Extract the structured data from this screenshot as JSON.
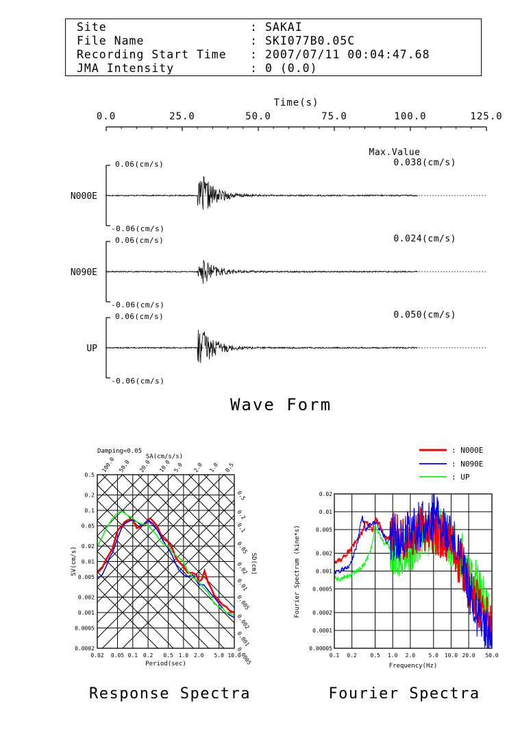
{
  "header": {
    "rows": [
      {
        "label": "Site",
        "value": "SAKAI"
      },
      {
        "label": "File Name",
        "value": "SKI077B0.05C"
      },
      {
        "label": "Recording Start Time",
        "value": "2007/07/11 00:04:47.68"
      },
      {
        "label": "JMA Intensity",
        "value": "0 (0.0)"
      }
    ],
    "colon": ":"
  },
  "chart_data": [
    {
      "type": "line",
      "title": "Wave Form",
      "xlabel": "Time(s)",
      "xlim": [
        0,
        125
      ],
      "x_ticks": [
        "0.0",
        "25.0",
        "50.0",
        "75.0",
        "100.0",
        "125.0"
      ],
      "max_value_label": "Max.Value",
      "series": [
        {
          "name": "N000E",
          "max_value": "0.038(cm/s)",
          "ylim_top": "0.06(cm/s)",
          "ylim_bottom": "-0.06(cm/s)",
          "onset_s": 30,
          "peak_s": 32,
          "max_abs": 0.038
        },
        {
          "name": "N090E",
          "max_value": "0.024(cm/s)",
          "ylim_top": "0.06(cm/s)",
          "ylim_bottom": "-0.06(cm/s)",
          "onset_s": 30,
          "peak_s": 32,
          "max_abs": 0.024
        },
        {
          "name": "UP",
          "max_value": "0.050(cm/s)",
          "ylim_top": "0.06(cm/s)",
          "ylim_bottom": "-0.06(cm/s)",
          "onset_s": 30,
          "peak_s": 30.5,
          "max_abs": 0.05
        }
      ]
    },
    {
      "type": "line",
      "title": "Response Spectra",
      "damping": "Damping=0.05",
      "xlabel": "Period(sec)",
      "ylabel": "SV(cm/s)",
      "top_label": "SA(cm/s/s)",
      "right_label": "SD(cm)",
      "x_scale": "log",
      "y_scale": "log",
      "xlim": [
        0.02,
        10.0
      ],
      "ylim": [
        0.0002,
        0.5
      ],
      "x_ticks": [
        "0.02",
        "0.05",
        "0.1",
        "0.2",
        "0.5",
        "1.0",
        "2.0",
        "5.0",
        "10.0"
      ],
      "y_ticks": [
        "0.5",
        "0.2",
        "0.1",
        "0.05",
        "0.02",
        "0.01",
        "0.005",
        "0.002",
        "0.001",
        "0.0005",
        "0.0002"
      ],
      "sa_ticks": [
        "100.0",
        "50.0",
        "20.0",
        "10.0",
        "5.0",
        "2.0",
        "1.0",
        "0.5"
      ],
      "sd_ticks": [
        "0.5",
        "0.2",
        "0.1",
        "0.05",
        "0.02",
        "0.01",
        "0.005",
        "0.002",
        "0.001",
        "0.0005"
      ],
      "series": [
        {
          "name": "N000E",
          "color": "#ff0000",
          "x": [
            0.02,
            0.025,
            0.03,
            0.04,
            0.05,
            0.06,
            0.07,
            0.08,
            0.1,
            0.12,
            0.15,
            0.18,
            0.2,
            0.22,
            0.25,
            0.3,
            0.35,
            0.4,
            0.5,
            0.6,
            0.7,
            0.8,
            1.0,
            1.2,
            1.5,
            1.8,
            2.0,
            2.3,
            2.6,
            3.0,
            3.5,
            4.0,
            5.0,
            6.0,
            7.0,
            8.0,
            10.0
          ],
          "y": [
            0.006,
            0.0075,
            0.011,
            0.018,
            0.04,
            0.05,
            0.06,
            0.065,
            0.065,
            0.045,
            0.05,
            0.055,
            0.065,
            0.07,
            0.062,
            0.05,
            0.035,
            0.028,
            0.024,
            0.018,
            0.012,
            0.01,
            0.008,
            0.006,
            0.006,
            0.0055,
            0.004,
            0.0045,
            0.0065,
            0.004,
            0.003,
            0.0022,
            0.0017,
            0.0014,
            0.0013,
            0.0011,
            0.001
          ]
        },
        {
          "name": "N090E",
          "color": "#0000ff",
          "x": [
            0.02,
            0.025,
            0.03,
            0.035,
            0.04,
            0.05,
            0.06,
            0.07,
            0.08,
            0.1,
            0.12,
            0.15,
            0.2,
            0.25,
            0.3,
            0.35,
            0.4,
            0.5,
            0.6,
            0.7,
            0.8,
            1.0,
            1.2,
            1.5,
            1.8,
            2.0,
            2.5,
            3.0,
            3.5,
            4.0,
            5.0,
            6.0,
            7.0,
            8.0,
            10.0
          ],
          "y": [
            0.0045,
            0.0055,
            0.008,
            0.012,
            0.015,
            0.028,
            0.045,
            0.055,
            0.06,
            0.065,
            0.06,
            0.05,
            0.065,
            0.055,
            0.042,
            0.032,
            0.025,
            0.018,
            0.013,
            0.009,
            0.007,
            0.0055,
            0.005,
            0.0055,
            0.0042,
            0.0035,
            0.0035,
            0.0028,
            0.0023,
            0.002,
            0.0015,
            0.0012,
            0.001,
            0.0009,
            0.0008
          ]
        },
        {
          "name": "UP",
          "color": "#00ff00",
          "x": [
            0.02,
            0.025,
            0.03,
            0.04,
            0.05,
            0.06,
            0.07,
            0.08,
            0.1,
            0.12,
            0.15,
            0.2,
            0.25,
            0.3,
            0.35,
            0.4,
            0.5,
            0.6,
            0.8,
            1.0,
            1.2,
            1.5,
            2.0,
            2.5,
            3.0,
            4.0,
            5.0,
            6.0,
            7.0,
            8.0,
            10.0
          ],
          "y": [
            0.02,
            0.03,
            0.045,
            0.07,
            0.09,
            0.095,
            0.088,
            0.08,
            0.07,
            0.06,
            0.055,
            0.05,
            0.04,
            0.032,
            0.025,
            0.022,
            0.02,
            0.015,
            0.012,
            0.01,
            0.0065,
            0.005,
            0.004,
            0.003,
            0.0025,
            0.0015,
            0.0013,
            0.0012,
            0.001,
            0.00095,
            0.0009
          ]
        }
      ]
    },
    {
      "type": "line",
      "title": "Fourier Spectra",
      "xlabel": "Frequency(Hz)",
      "ylabel": "Fourier Spectrum (kine*s)",
      "x_scale": "log",
      "y_scale": "log",
      "xlim": [
        0.1,
        50.0
      ],
      "ylim": [
        5e-05,
        0.02
      ],
      "x_ticks": [
        "0.1",
        "0.2",
        "0.5",
        "1.0",
        "2.0",
        "5.0",
        "10.0",
        "20.0",
        "50.0"
      ],
      "y_ticks": [
        "0.02",
        "0.01",
        "0.005",
        "0.002",
        "0.001",
        "0.0005",
        "0.0002",
        "0.0001",
        "0.00005"
      ],
      "legend": "top-right",
      "series": [
        {
          "name": "N000E",
          "color": "#ff0000",
          "x": [
            0.1,
            0.12,
            0.15,
            0.18,
            0.2,
            0.22,
            0.25,
            0.3,
            0.35,
            0.4,
            0.45,
            0.5,
            0.6,
            0.7,
            0.8,
            1.0,
            1.5,
            2.0,
            3.0,
            5.0,
            7.0,
            10.0,
            15.0,
            20.0,
            30.0,
            50.0
          ],
          "y": [
            0.0014,
            0.0015,
            0.0018,
            0.0022,
            0.0025,
            0.0028,
            0.0035,
            0.0045,
            0.007,
            0.0055,
            0.005,
            0.008,
            0.006,
            0.004,
            0.0035,
            0.004,
            0.004,
            0.004,
            0.005,
            0.005,
            0.004,
            0.0025,
            0.0013,
            0.0005,
            0.00025,
            0.0001
          ]
        },
        {
          "name": "N090E",
          "color": "#0000ff",
          "x": [
            0.1,
            0.12,
            0.15,
            0.18,
            0.2,
            0.22,
            0.25,
            0.28,
            0.3,
            0.35,
            0.4,
            0.5,
            0.6,
            0.7,
            0.8,
            1.0,
            1.5,
            2.0,
            3.0,
            5.0,
            7.0,
            10.0,
            15.0,
            20.0,
            30.0,
            50.0
          ],
          "y": [
            0.0009,
            0.001,
            0.0011,
            0.0012,
            0.0015,
            0.002,
            0.003,
            0.006,
            0.008,
            0.005,
            0.006,
            0.007,
            0.005,
            0.004,
            0.003,
            0.004,
            0.0035,
            0.005,
            0.006,
            0.008,
            0.006,
            0.004,
            0.0015,
            0.0005,
            0.00015,
            7e-05
          ]
        },
        {
          "name": "UP",
          "color": "#00ff00",
          "x": [
            0.1,
            0.12,
            0.15,
            0.18,
            0.2,
            0.25,
            0.3,
            0.35,
            0.4,
            0.45,
            0.5,
            0.6,
            0.7,
            0.8,
            1.0,
            1.5,
            2.0,
            3.0,
            5.0,
            7.0,
            10.0,
            15.0,
            20.0,
            30.0,
            50.0
          ],
          "y": [
            0.0008,
            0.0007,
            0.0008,
            0.0008,
            0.0009,
            0.001,
            0.0012,
            0.0015,
            0.002,
            0.003,
            0.006,
            0.004,
            0.003,
            0.003,
            0.002,
            0.002,
            0.0025,
            0.004,
            0.004,
            0.0045,
            0.003,
            0.002,
            0.001,
            0.0006,
            0.00012
          ]
        }
      ]
    }
  ]
}
